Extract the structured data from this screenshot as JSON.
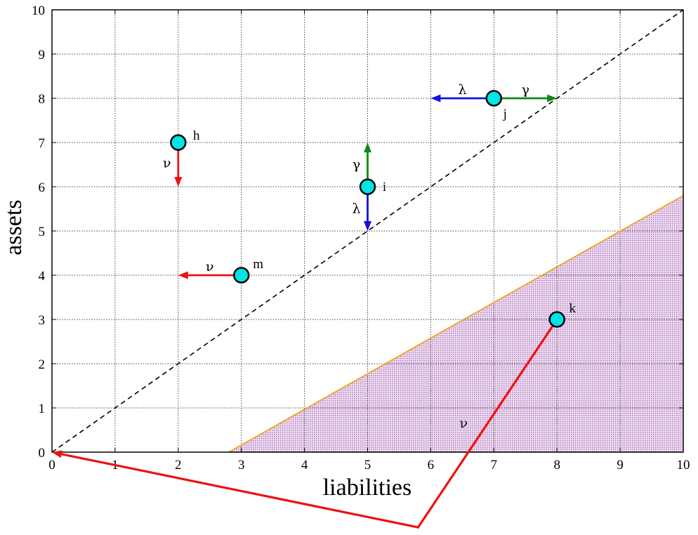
{
  "chart_data": {
    "type": "scatter",
    "xlabel": "liabilities",
    "ylabel": "assets",
    "xlim": [
      0,
      10
    ],
    "ylim": [
      0,
      10
    ],
    "xticks": [
      "0",
      "1",
      "2",
      "3",
      "4",
      "5",
      "6",
      "7",
      "8",
      "9",
      "10"
    ],
    "yticks": [
      "0",
      "1",
      "2",
      "3",
      "4",
      "5",
      "6",
      "7",
      "8",
      "9",
      "10"
    ],
    "grid": true,
    "diagonal": {
      "from": [
        0,
        0
      ],
      "to": [
        10,
        10
      ],
      "style": "dashed"
    },
    "boundary": {
      "from": [
        2.8,
        0
      ],
      "to": [
        10,
        5.8
      ],
      "color": "#f0a020",
      "region_fill": "#b070c0"
    },
    "points": [
      {
        "label": "h",
        "x": 2,
        "y": 7
      },
      {
        "label": "i",
        "x": 5,
        "y": 6
      },
      {
        "label": "j",
        "x": 7,
        "y": 8
      },
      {
        "label": "m",
        "x": 3,
        "y": 4
      },
      {
        "label": "k",
        "x": 8,
        "y": 3
      }
    ],
    "arrows": [
      {
        "label": "ν",
        "from": [
          2,
          7
        ],
        "to": [
          2,
          6
        ],
        "color": "#ee1111"
      },
      {
        "label": "γ",
        "from": [
          5,
          6
        ],
        "to": [
          5,
          7
        ],
        "color": "#118811"
      },
      {
        "label": "λ",
        "from": [
          5,
          6
        ],
        "to": [
          5,
          5
        ],
        "color": "#1111dd"
      },
      {
        "label": "λ",
        "from": [
          7,
          8
        ],
        "to": [
          6,
          8
        ],
        "color": "#1111dd"
      },
      {
        "label": "γ",
        "from": [
          7,
          8
        ],
        "to": [
          8,
          8
        ],
        "color": "#118811"
      },
      {
        "label": "ν",
        "from": [
          3,
          4
        ],
        "to": [
          2,
          4
        ],
        "color": "#ee1111"
      },
      {
        "label": "ν",
        "path": [
          [
            8,
            3
          ],
          [
            5.8,
            -1.7
          ],
          [
            0,
            0
          ]
        ],
        "color": "#ee1111"
      }
    ],
    "colors": {
      "point_fill": "#00e5e5",
      "point_stroke": "#000000"
    }
  }
}
